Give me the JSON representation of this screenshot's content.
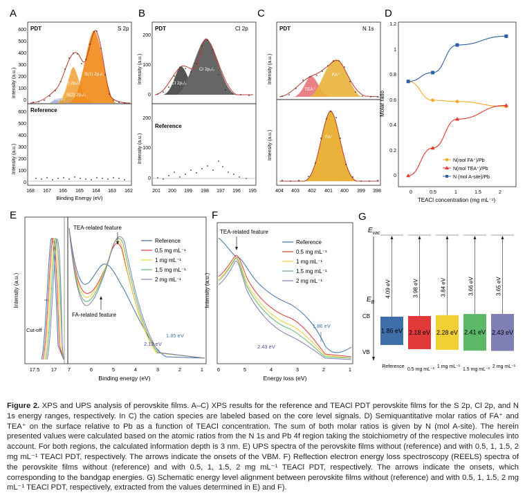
{
  "panels": {
    "A": {
      "letter": "A",
      "tag": "PDT",
      "region": "S 2p",
      "ref_label": "Reference",
      "ylabel": "Intensity (a.u.)",
      "xlabel": "Binding Energy (eV)",
      "yticks_top": [
        "0",
        "100",
        "200",
        "300",
        "400",
        "500",
        "600"
      ],
      "yticks_bot": [
        "0",
        "100",
        "200",
        "300",
        "400",
        "500",
        "600"
      ],
      "xticks": [
        "168",
        "167",
        "166",
        "165",
        "164",
        "163",
        "162"
      ],
      "peaks": [
        "S(1) 2p₃/₂",
        "S(1) 2p₁/₂",
        "S(2) 2p₃/₂",
        "S(2) 2p₁/₂"
      ]
    },
    "B": {
      "letter": "B",
      "tag": "PDT",
      "region": "Cl 2p",
      "ref_label": "Reference",
      "ylabel": "Intensity (a.u.)",
      "yticks_top": [
        "0",
        "100",
        "200"
      ],
      "yticks_bot": [
        "0",
        "100",
        "200"
      ],
      "xticks": [
        "201",
        "200",
        "199",
        "198",
        "197",
        "196",
        "195"
      ],
      "peaks": [
        "Cl 2p₁/₂",
        "Cl 2p₃/₂"
      ]
    },
    "C": {
      "letter": "C",
      "tag": "PDT",
      "region": "N 1s",
      "ylabel": "Intensity (a.u.)",
      "xticks": [
        "404",
        "403",
        "402",
        "401",
        "400",
        "399",
        "398"
      ],
      "peaks": [
        "TEA⁺",
        "FA⁺",
        "FA⁺"
      ]
    },
    "D": {
      "letter": "D",
      "ylabel": "Molar ratio",
      "xlabel": "TEACl concentration (mg mL⁻¹)",
      "yticks": [
        "0",
        "0.2",
        "0.4",
        "0.6",
        "0.8",
        "1",
        "1.2"
      ],
      "xticks": [
        "0",
        "0.5",
        "1",
        "1.5",
        "2"
      ],
      "legend": [
        "N(mol FA⁺)/Pb",
        "N(mol TEA⁺)/Pb",
        "N (mol A-site)/Pb"
      ]
    },
    "E": {
      "letter": "E",
      "ylabel": "Intensity (a.u.)",
      "xlabel": "Binding energy (eV)",
      "xticks_left": [
        "17.5",
        "17"
      ],
      "xticks": [
        "7",
        "6",
        "5",
        "4",
        "3",
        "2",
        "1"
      ],
      "annot_tea": "TEA-related feature",
      "annot_fa": "FA-related feature",
      "cutoff": "Cut-off",
      "val1": "2.12 eV",
      "val2": "1.85 eV",
      "legend": [
        "Reference",
        "0.5 mg mL⁻¹",
        "1 mg mL⁻¹",
        "1.5 mg mL⁻¹",
        "2 mg mL⁻¹"
      ]
    },
    "F": {
      "letter": "F",
      "ylabel": "Intensity (a.u.)",
      "xlabel": "Energy loss (eV)",
      "xticks": [
        "6",
        "5",
        "4",
        "3",
        "2",
        "1"
      ],
      "annot_tea": "TEA-related feature",
      "val1": "1.86 eV",
      "val2": "2.43 eV",
      "legend": [
        "Reference",
        "0.5 mg mL⁻¹",
        "1 mg mL⁻¹",
        "1.5 mg mL⁻¹",
        "2 mg mL⁻¹"
      ]
    },
    "G": {
      "letter": "G",
      "evac": "E",
      "evac_sub": "vac",
      "eb": "E",
      "eb_sub": "B",
      "cb": "CB",
      "vb": "VB",
      "bars": [
        {
          "label": "Reference",
          "wf": "4.09 eV",
          "gap": "1.86 eV",
          "color": "#3f6fa8"
        },
        {
          "label": "0.5 mg mL⁻¹",
          "wf": "3.98 eV",
          "gap": "2.18 eV",
          "color": "#e03a3a"
        },
        {
          "label": "1 mg mL⁻¹",
          "wf": "3.84 eV",
          "gap": "2.28 eV",
          "color": "#f2cf33"
        },
        {
          "label": "1.5 mg mL⁻¹",
          "wf": "3.66 eV",
          "gap": "2.41 eV",
          "color": "#5cb96a"
        },
        {
          "label": "2 mg mL⁻¹",
          "wf": "3.65 eV",
          "gap": "2.43 eV",
          "color": "#7f7fb5"
        }
      ]
    }
  },
  "chart_data": [
    {
      "type": "line",
      "panel": "D",
      "x": [
        0,
        0.5,
        1,
        2
      ],
      "xlabel": "TEACl concentration (mg mL⁻¹)",
      "ylabel": "Molar ratio",
      "ylim": [
        0,
        1.2
      ],
      "xlim": [
        -0.2,
        2.2
      ],
      "legend_position": "bottom-right",
      "series": [
        {
          "name": "N(mol FA⁺)/Pb",
          "values": [
            0.75,
            0.6,
            0.59,
            0.55
          ],
          "color": "#f5a623"
        },
        {
          "name": "N(mol TEA⁺)/Pb",
          "values": [
            0.0,
            0.22,
            0.45,
            0.56
          ],
          "color": "#e8362b"
        },
        {
          "name": "N (mol A-site)/Pb",
          "values": [
            0.75,
            0.82,
            1.04,
            1.11
          ],
          "color": "#2a5fa8"
        }
      ]
    },
    {
      "type": "bar",
      "panel": "G",
      "categories": [
        "Reference",
        "0.5 mg mL⁻¹",
        "1 mg mL⁻¹",
        "1.5 mg mL⁻¹",
        "2 mg mL⁻¹"
      ],
      "series": [
        {
          "name": "work function (eV)",
          "values": [
            4.09,
            3.98,
            3.84,
            3.66,
            3.65
          ]
        },
        {
          "name": "bandgap (eV)",
          "values": [
            1.86,
            2.18,
            2.28,
            2.41,
            2.43
          ]
        }
      ]
    }
  ],
  "caption": {
    "label": "Figure 2.",
    "text": " XPS and UPS analysis of perovskite films. A–C) XPS results for the reference and TEACl PDT perovskite films for the S 2p, Cl 2p, and N 1s energy ranges, respectively. In C) the cation species are labeled based on the core level signals. D) Semiquantitative molar ratios of FA⁺ and TEA⁺ on the surface relative to Pb as a function of TEACl concentration. The sum of both molar ratios is given by N (mol A-site). The herein presented values were calculated based on the atomic ratios from the N 1s and Pb 4f region taking the stoichiometry of the respective molecules into account. For both regions, the calculated information depth is 3 nm. E) UPS spectra of the perovskite films without (reference) and with 0.5, 1, 1.5, 2 mg mL⁻¹ TEACl PDT, respectively. The arrows indicate the onsets of the VBM. F) Reflection electron energy loss spectroscopy (REELS) spectra of the perovskite films without (reference) and with 0.5, 1, 1.5, 2 mg mL⁻¹ TEACl PDT, respectively. The arrows indicate the onsets, which corresponding to the bandgap energies. G) Schematic energy level alignment between perovskite films without (reference) and with 0.5, 1, 1.5, 2 mg mL⁻¹ TEACl PDT, respectively, extracted from the values determined in E) and F)."
  }
}
